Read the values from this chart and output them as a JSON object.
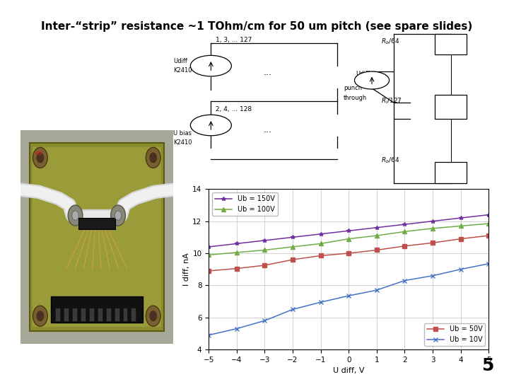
{
  "title": "Inter-“strip” resistance ~1 TOhm/cm for 50 um pitch (see spare slides)",
  "slide_number": "5",
  "graph": {
    "xlabel": "U diff, V",
    "ylabel": "I diff, nA",
    "xlim": [
      -5,
      5
    ],
    "ylim": [
      4,
      14
    ],
    "yticks": [
      4,
      6,
      8,
      10,
      12,
      14
    ],
    "xticks": [
      -5,
      -4,
      -3,
      -2,
      -1,
      0,
      1,
      2,
      3,
      4,
      5
    ],
    "series": [
      {
        "label": "Ub = 150V",
        "color": "#7030A0",
        "marker": "*",
        "markersize": 4,
        "linewidth": 1.1,
        "x": [
          -5,
          -4,
          -3,
          -2,
          -1,
          0,
          1,
          2,
          3,
          4,
          5
        ],
        "y": [
          10.4,
          10.6,
          10.8,
          11.0,
          11.2,
          11.4,
          11.6,
          11.8,
          12.0,
          12.2,
          12.4
        ]
      },
      {
        "label": "Ub = 100V",
        "color": "#70AD47",
        "marker": "^",
        "markersize": 4,
        "linewidth": 1.1,
        "x": [
          -5,
          -4,
          -3,
          -2,
          -1,
          0,
          1,
          2,
          3,
          4,
          5
        ],
        "y": [
          9.9,
          10.05,
          10.2,
          10.4,
          10.6,
          10.9,
          11.1,
          11.35,
          11.55,
          11.7,
          11.85
        ]
      },
      {
        "label": "Ub = 50V",
        "color": "#C0504D",
        "marker": "s",
        "markersize": 4,
        "linewidth": 1.1,
        "x": [
          -5,
          -4,
          -3,
          -2,
          -1,
          0,
          1,
          2,
          3,
          4,
          5
        ],
        "y": [
          8.9,
          9.05,
          9.25,
          9.6,
          9.85,
          10.0,
          10.2,
          10.45,
          10.65,
          10.9,
          11.1
        ]
      },
      {
        "label": "Ub = 10V",
        "color": "#4472C4",
        "marker": "x",
        "markersize": 4,
        "linewidth": 1.1,
        "x": [
          -5,
          -4,
          -3,
          -2,
          -1,
          0,
          1,
          2,
          3,
          4,
          5
        ],
        "y": [
          4.9,
          5.3,
          5.8,
          6.5,
          6.95,
          7.35,
          7.7,
          8.3,
          8.6,
          9.0,
          9.35
        ]
      }
    ],
    "grid": true,
    "grid_color": "#C0C0C0",
    "background_color": "#FFFFFF"
  },
  "bg_color": "#FFFFFF",
  "title_fontsize": 11,
  "title_bold": true,
  "photo": {
    "bg_color": "#B0B0A0",
    "board_color": "#8B8C30",
    "board_color2": "#7A7820",
    "white_cable_color": "#E8E8E8",
    "connector_color": "#2A2A2A",
    "screw_color": "#888880",
    "pin_color": "#333333",
    "trace_color": "#C8A040"
  }
}
